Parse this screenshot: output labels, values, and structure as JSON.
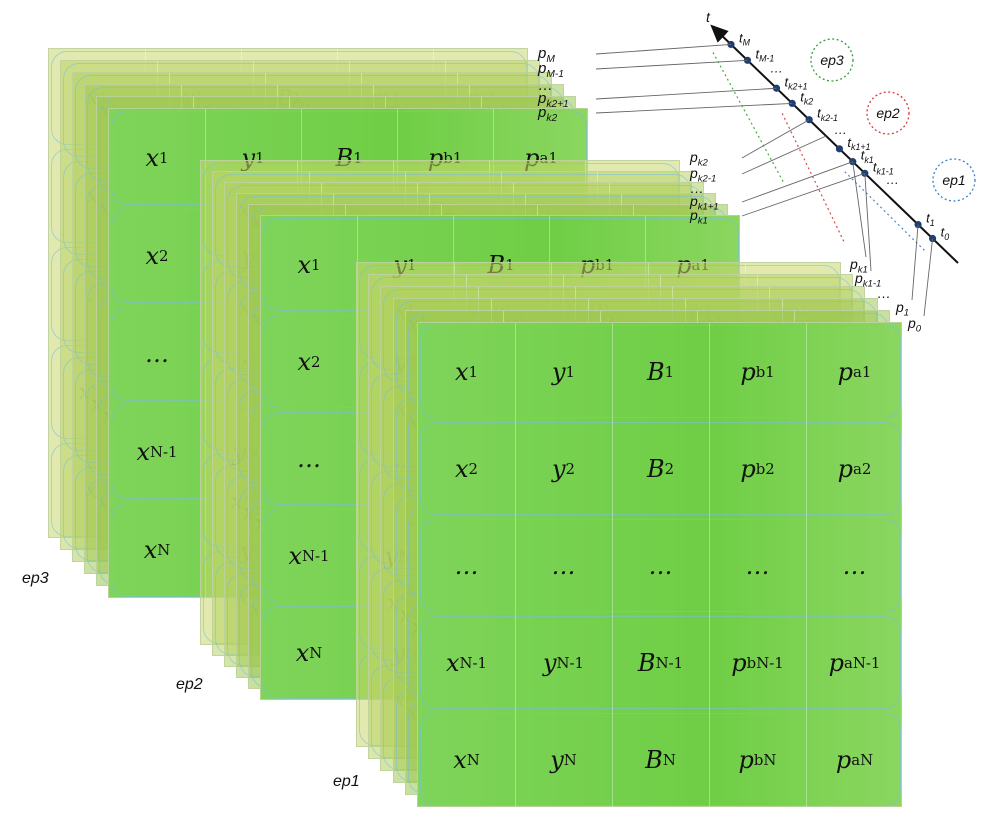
{
  "stack_labels": [
    "ep3",
    "ep2",
    "ep1"
  ],
  "rows": [
    {
      "x": "x1",
      "y": "y1",
      "B": "B1",
      "pb": "pb1",
      "pa": "pa1"
    },
    {
      "x": "x2",
      "y": "y2",
      "B": "B2",
      "pb": "pb2",
      "pa": "pa2"
    },
    {
      "x": "…",
      "y": "…",
      "B": "…",
      "pb": "…",
      "pa": "…"
    },
    {
      "x": "xN-1",
      "y": "yN-1",
      "B": "BN-1",
      "pb": "pbN-1",
      "pa": "paN-1"
    },
    {
      "x": "xN",
      "y": "yN",
      "B": "BN",
      "pb": "pbN",
      "pa": "paN"
    }
  ],
  "timeline": {
    "axis_label": "t",
    "t_labels": [
      "tM",
      "tM-1",
      "…",
      "tk2+1",
      "tk2",
      "tk2-1",
      "…",
      "tk1+1",
      "tk1",
      "tk1-1",
      "…",
      "t1",
      "t0"
    ],
    "p_labels_upper": [
      "pM",
      "pM-1",
      "…",
      "pk2+1",
      "pk2"
    ],
    "p_labels_middle": [
      "pk2",
      "pk2-1",
      "…",
      "pk1+1",
      "pk1"
    ],
    "p_labels_lower": [
      "pk1",
      "pk1-1",
      "…",
      "p1",
      "p0"
    ],
    "episode_circles": [
      {
        "label": "ep3",
        "color": "#3a9a3a"
      },
      {
        "label": "ep2",
        "color": "#d83a3a"
      },
      {
        "label": "ep1",
        "color": "#3a80c8"
      }
    ]
  }
}
